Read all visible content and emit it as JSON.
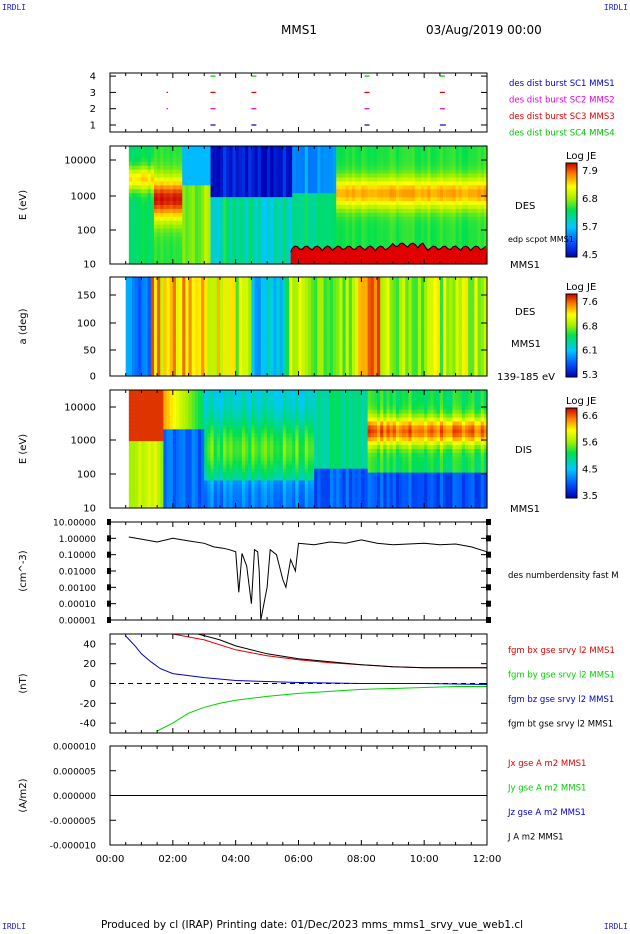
{
  "corners": {
    "tl": "IRDLI",
    "tr": "IRDLI",
    "bl": "IRDLI",
    "br": "IRDLI"
  },
  "header": {
    "mission": "MMS1",
    "datetime": "03/Aug/2019 00:00"
  },
  "footer": {
    "text": "Produced by cl (IRAP)   Printing date: 01/Dec/2023   mms_mms1_srvy_vue_web1.cl"
  },
  "colors": {
    "mms1": "#0000c8",
    "mms2": "#e000e0",
    "mms3": "#e00000",
    "mms4": "#00c000",
    "bx": "#e00000",
    "by": "#00d000",
    "bz": "#0000d0",
    "bt": "#000000"
  },
  "chart_data": [
    {
      "type": "scatter",
      "title": "",
      "ylabel": "",
      "yticks": [
        "4",
        "3",
        "2",
        "1"
      ],
      "legend": [
        "des dist burst SC1 MMS1",
        "des dist burst SC2 MMS2",
        "des dist burst SC3 MMS3",
        "des dist burst SC4 MMS4"
      ],
      "series": [
        {
          "name": "des dist burst SC1 MMS1",
          "y": 1,
          "x_hours": [
            3.2,
            4.5,
            8.1,
            10.5
          ]
        },
        {
          "name": "des dist burst SC2 MMS2",
          "y": 2,
          "x_hours": [
            1.8,
            3.2,
            4.5,
            8.1,
            10.5
          ]
        },
        {
          "name": "des dist burst SC3 MMS3",
          "y": 3,
          "x_hours": [
            1.8,
            3.2,
            4.5,
            8.1,
            10.5
          ]
        },
        {
          "name": "des dist burst SC4 MMS4",
          "y": 4,
          "x_hours": [
            3.2,
            4.5,
            8.1,
            10.5
          ]
        }
      ]
    },
    {
      "type": "heatmap",
      "ylabel": "E (eV)",
      "yticks": [
        "10000",
        "1000",
        "100",
        "10"
      ],
      "ylog": true,
      "right_labels": [
        "DES",
        "edp scpot MMS1",
        "MMS1"
      ],
      "colorbar": {
        "title": "Log JE",
        "ticks": [
          "7.9",
          "6.8",
          "5.7",
          "4.5"
        ]
      }
    },
    {
      "type": "heatmap",
      "ylabel": "a (deg)",
      "yticks": [
        "150",
        "100",
        "50",
        "0"
      ],
      "right_labels": [
        "DES",
        "MMS1",
        "139-185 eV"
      ],
      "colorbar": {
        "title": "Log JE",
        "ticks": [
          "7.6",
          "6.8",
          "6.1",
          "5.3"
        ]
      }
    },
    {
      "type": "heatmap",
      "ylabel": "E (eV)",
      "yticks": [
        "10000",
        "1000",
        "100",
        "10"
      ],
      "ylog": true,
      "right_labels": [
        "DIS",
        "MMS1"
      ],
      "colorbar": {
        "title": "Log JE",
        "ticks": [
          "6.6",
          "5.6",
          "4.5",
          "3.5"
        ]
      }
    },
    {
      "type": "line",
      "ylabel": "(cm^-3)",
      "ylog": true,
      "ylim": [
        1e-05,
        10
      ],
      "yticks": [
        "10.00000",
        "1.00000",
        "0.10000",
        "0.01000",
        "0.00100",
        "0.00010",
        "0.00001"
      ],
      "series": [
        {
          "name": "des numberdensity fast M",
          "x_hours": [
            0.6,
            1.0,
            1.5,
            2.0,
            2.5,
            3.0,
            3.3,
            3.6,
            3.8,
            4.0,
            4.1,
            4.2,
            4.35,
            4.5,
            4.6,
            4.7,
            4.75,
            4.8,
            5.0,
            5.1,
            5.3,
            5.5,
            5.6,
            5.75,
            5.9,
            6.0,
            6.5,
            7.0,
            7.5,
            8.0,
            8.5,
            9.0,
            9.5,
            10.0,
            10.5,
            11.0,
            11.5,
            12.0
          ],
          "values": [
            1.2,
            0.9,
            0.6,
            1.0,
            0.7,
            0.5,
            0.3,
            0.25,
            0.2,
            0.15,
            0.0005,
            0.12,
            0.02,
            0.0001,
            0.2,
            0.15,
            0.01,
            1e-05,
            0.001,
            0.2,
            0.1,
            0.003,
            0.001,
            0.05,
            0.01,
            0.5,
            0.4,
            0.6,
            0.5,
            0.8,
            0.5,
            0.4,
            0.45,
            0.5,
            0.4,
            0.45,
            0.3,
            0.15
          ]
        }
      ]
    },
    {
      "type": "line",
      "ylabel": "(nT)",
      "ylim": [
        -50,
        50
      ],
      "yticks": [
        "40",
        "20",
        "0",
        "-20",
        "-40"
      ],
      "series": [
        {
          "name": "fgm bx gse srvy l2 MMS1",
          "x_hours": [
            2.0,
            3.0,
            4.0,
            5.0,
            6.0,
            7.0,
            8.0,
            9.0,
            10.0,
            11.0,
            12.0
          ],
          "values": [
            50,
            44,
            34,
            28,
            24,
            21,
            19,
            17,
            16,
            16,
            16
          ]
        },
        {
          "name": "fgm by gse srvy l2 MMS1",
          "x_hours": [
            1.5,
            2.0,
            2.5,
            3.0,
            3.5,
            4.0,
            5.0,
            6.0,
            7.0,
            8.0,
            9.0,
            10.0,
            11.0,
            12.0
          ],
          "values": [
            -48,
            -40,
            -30,
            -24,
            -20,
            -17,
            -13,
            -10,
            -8,
            -6,
            -5,
            -4,
            -3,
            -3
          ]
        },
        {
          "name": "fgm bz gse srvy l2 MMS1",
          "x_hours": [
            0.5,
            0.8,
            1.0,
            1.3,
            1.6,
            2.0,
            3.0,
            4.0,
            6.0,
            8.0,
            10.0,
            12.0
          ],
          "values": [
            48,
            38,
            30,
            22,
            15,
            10,
            6,
            3,
            1,
            0,
            0,
            -1
          ]
        },
        {
          "name": "fgm bt gse srvy l2 MMS1",
          "x_hours": [
            2.8,
            3.5,
            4.0,
            5.0,
            6.0,
            7.0,
            8.0,
            9.0,
            10.0,
            11.0,
            12.0
          ],
          "values": [
            50,
            44,
            38,
            30,
            25,
            22,
            19,
            17,
            16,
            16,
            16
          ]
        }
      ]
    },
    {
      "type": "line",
      "ylabel": "(A/m2)",
      "ylim": [
        -1e-05,
        1e-05
      ],
      "yticks": [
        "0.000010",
        "0.000005",
        "0.000000",
        "-0.000005",
        "-0.000010"
      ],
      "x_ticks": [
        "00:00",
        "02:00",
        "04:00",
        "06:00",
        "08:00",
        "10:00",
        "12:00"
      ],
      "series": [
        {
          "name": "Jx gse A m2 MMS1",
          "x_hours": [
            0,
            12
          ],
          "values": [
            0,
            0
          ]
        },
        {
          "name": "Jy gse A m2 MMS1",
          "x_hours": [
            0,
            12
          ],
          "values": [
            0,
            0
          ]
        },
        {
          "name": "Jz gse A m2 MMS1",
          "x_hours": [
            0,
            12
          ],
          "values": [
            0,
            0
          ]
        },
        {
          "name": "J A m2 MMS1",
          "x_hours": [
            0,
            12
          ],
          "values": [
            0,
            0
          ]
        }
      ]
    }
  ]
}
